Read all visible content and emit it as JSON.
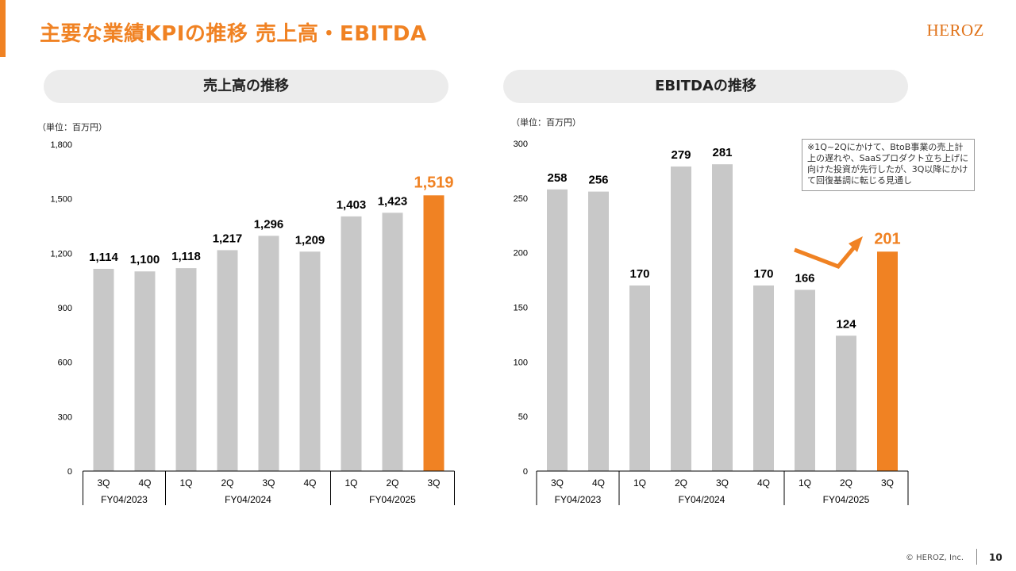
{
  "header": {
    "title": "主要な業績KPIの推移 売上高・EBITDA",
    "logo": "HEROZ"
  },
  "colors": {
    "accent": "#f08223",
    "bar": "#c8c8c8",
    "pill": "#ececec"
  },
  "sections": {
    "sales": {
      "title": "売上高の推移",
      "unit": "（単位：百万円）"
    },
    "ebitda": {
      "title": "EBITDAの推移",
      "unit": "（単位：百万円）"
    }
  },
  "note": "※1Q~2Qにかけて、BtoB事業の売上計上の遅れや、SaaSプロダクト立ち上げに向けた投資が先行したが、3Q以降にかけて回復基調に転じる見通し",
  "footer": {
    "copyright": "© HEROZ, Inc.",
    "page_number": "10"
  },
  "chart_data": [
    {
      "type": "bar",
      "title": "売上高の推移",
      "categories": [
        "3Q",
        "4Q",
        "1Q",
        "2Q",
        "3Q",
        "4Q",
        "1Q",
        "2Q",
        "3Q"
      ],
      "groups": [
        {
          "label": "FY04/2023",
          "count": 2
        },
        {
          "label": "FY04/2024",
          "count": 4
        },
        {
          "label": "FY04/2025",
          "count": 3
        }
      ],
      "values": [
        1114,
        1100,
        1118,
        1217,
        1296,
        1209,
        1403,
        1423,
        1519
      ],
      "value_labels": [
        "1,114",
        "1,100",
        "1,118",
        "1,217",
        "1,296",
        "1,209",
        "1,403",
        "1,423",
        "1,519"
      ],
      "highlight_index": 8,
      "ylim": [
        0,
        1800
      ],
      "yticks": [
        0,
        300,
        600,
        900,
        1200,
        1500,
        1800
      ],
      "ytick_labels": [
        "0",
        "300",
        "600",
        "900",
        "1,200",
        "1,500",
        "1,800"
      ],
      "grid": false
    },
    {
      "type": "bar",
      "title": "EBITDAの推移",
      "categories": [
        "3Q",
        "4Q",
        "1Q",
        "2Q",
        "3Q",
        "4Q",
        "1Q",
        "2Q",
        "3Q"
      ],
      "groups": [
        {
          "label": "FY04/2023",
          "count": 2
        },
        {
          "label": "FY04/2024",
          "count": 4
        },
        {
          "label": "FY04/2025",
          "count": 3
        }
      ],
      "values": [
        258,
        256,
        170,
        279,
        281,
        170,
        166,
        124,
        201
      ],
      "value_labels": [
        "258",
        "256",
        "170",
        "279",
        "281",
        "170",
        "166",
        "124",
        "201"
      ],
      "highlight_index": 8,
      "ylim": [
        0,
        300
      ],
      "yticks": [
        0,
        50,
        100,
        150,
        200,
        250,
        300
      ],
      "ytick_labels": [
        "0",
        "50",
        "100",
        "150",
        "200",
        "250",
        "300"
      ],
      "grid": false
    }
  ]
}
